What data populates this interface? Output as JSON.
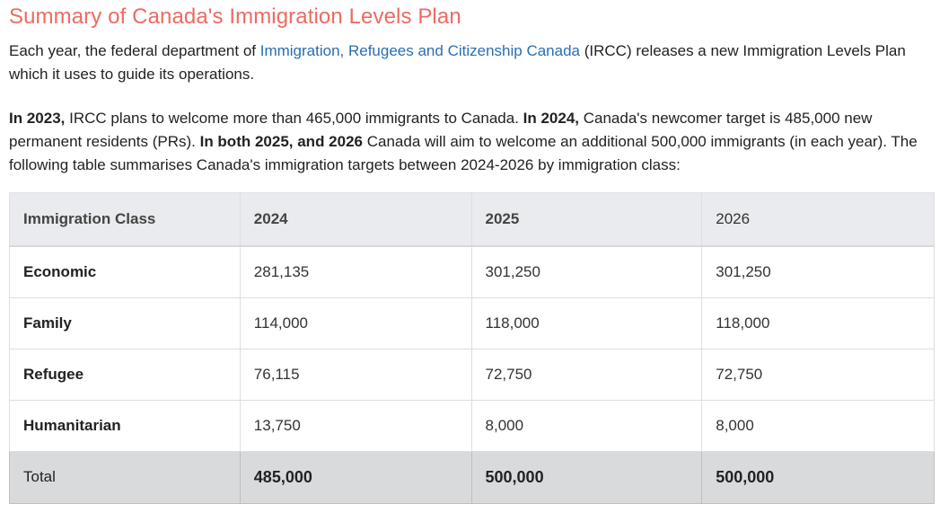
{
  "heading": "Summary of Canada's Immigration Levels Plan",
  "intro": {
    "before_link": "Each year, the federal department of ",
    "link_text": "Immigration, Refugees and Citizenship Canada",
    "after_link": " (IRCC) releases a new Immigration Levels Plan which it uses to guide its operations."
  },
  "summary": {
    "b1": "In 2023,",
    "t1": " IRCC plans to welcome more than 465,000 immigrants to Canada. ",
    "b2": "In 2024,",
    "t2": " Canada's newcomer target is 485,000 new permanent residents (PRs). ",
    "b3": "In both 2025, and 2026",
    "t3": " Canada will aim to welcome an additional 500,000 immigrants (in each year). The following table summarises Canada's immigration targets between 2024-2026 by immigration class:"
  },
  "table": {
    "headers": [
      "Immigration Class",
      "2024",
      "2025",
      "2026"
    ],
    "rows": [
      {
        "label": "Economic",
        "values": [
          "281,135",
          "301,250",
          "301,250"
        ]
      },
      {
        "label": "Family",
        "values": [
          "114,000",
          "118,000",
          "118,000"
        ]
      },
      {
        "label": "Refugee",
        "values": [
          "76,115",
          "72,750",
          "72,750"
        ]
      },
      {
        "label": "Humanitarian",
        "values": [
          "13,750",
          "8,000",
          "8,000"
        ]
      }
    ],
    "total": {
      "label": "Total",
      "values": [
        "485,000",
        "500,000",
        "500,000"
      ]
    }
  },
  "colors": {
    "heading": "#ee6a63",
    "link": "#2a6eb4",
    "header_bg": "#e9ebee",
    "total_bg": "#d9dadb"
  }
}
